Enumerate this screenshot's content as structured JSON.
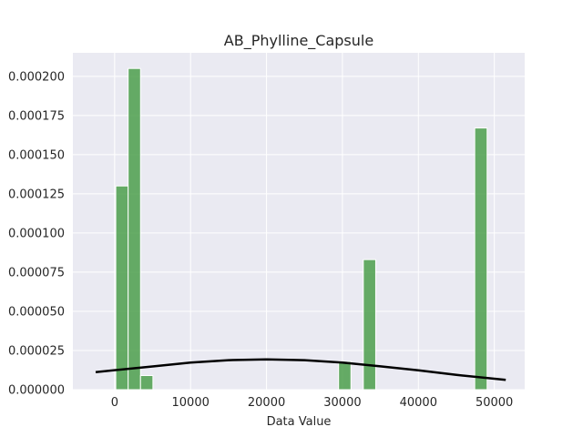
{
  "chart_data": {
    "type": "bar",
    "title": "AB_Phylline_Capsule",
    "xlabel": "Data Value",
    "ylabel": "",
    "xlim": [
      -5500,
      54000
    ],
    "ylim": [
      0,
      0.000215
    ],
    "grid": true,
    "x_ticks": [
      0,
      10000,
      20000,
      30000,
      40000,
      50000
    ],
    "x_tick_labels": [
      "0",
      "10000",
      "20000",
      "30000",
      "40000",
      "50000"
    ],
    "y_ticks": [
      0,
      2.5e-05,
      5e-05,
      7.5e-05,
      0.0001,
      0.000125,
      0.00015,
      0.000175,
      0.0002
    ],
    "y_tick_labels": [
      "0.000000",
      "0.000025",
      "0.000050",
      "0.000075",
      "0.000100",
      "0.000125",
      "0.000150",
      "0.000175",
      "0.000200"
    ],
    "bin_width": 1630,
    "bars": [
      {
        "x_start": 150,
        "x_end": 1780,
        "value": 0.00013
      },
      {
        "x_start": 1780,
        "x_end": 3410,
        "value": 0.000205
      },
      {
        "x_start": 3410,
        "x_end": 5040,
        "value": 9e-06
      },
      {
        "x_start": 29490,
        "x_end": 31120,
        "value": 1.8e-05
      },
      {
        "x_start": 32750,
        "x_end": 34380,
        "value": 8.3e-05
      },
      {
        "x_start": 47420,
        "x_end": 49050,
        "value": 0.000167
      }
    ],
    "bar_color": "#4c9f4c",
    "curve": {
      "type": "line",
      "color": "#000000",
      "x": [
        -2500,
        5000,
        10000,
        15000,
        20000,
        25000,
        30000,
        35000,
        40000,
        45000,
        51500
      ],
      "y": [
        1.12e-05,
        1.48e-05,
        1.73e-05,
        1.88e-05,
        1.93e-05,
        1.88e-05,
        1.73e-05,
        1.49e-05,
        1.23e-05,
        9.4e-06,
        6.3e-06
      ]
    }
  }
}
